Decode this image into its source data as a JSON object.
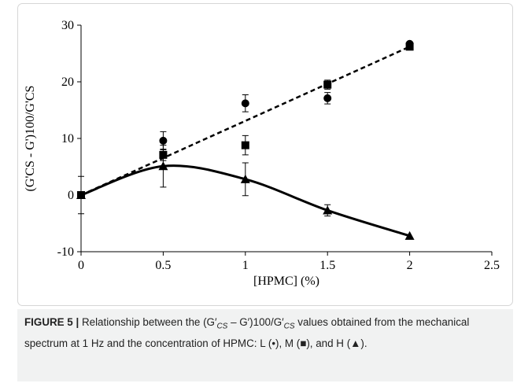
{
  "chart_data": {
    "type": "scatter",
    "x_label": "[HPMC] (%)",
    "y_label": "(G'CS - G')100/G'CS",
    "x": [
      0,
      0.5,
      1,
      1.5,
      2
    ],
    "series": [
      {
        "name": "L",
        "marker": "circle",
        "color": "#000000",
        "values": [
          0,
          9.6,
          16.2,
          17.1,
          26.7
        ],
        "errors": [
          3.3,
          1.6,
          1.5,
          1.0,
          0
        ]
      },
      {
        "name": "M",
        "marker": "square",
        "color": "#000000",
        "values": [
          0,
          7.1,
          8.8,
          19.5,
          26.2
        ],
        "errors": [
          0,
          1.0,
          1.7,
          0.8,
          0
        ]
      },
      {
        "name": "H",
        "marker": "triangle",
        "color": "#000000",
        "values": [
          0,
          5.1,
          2.8,
          -2.7,
          -7.2
        ],
        "errors": [
          0,
          3.7,
          2.9,
          1.0,
          0
        ],
        "curve": "smooth"
      }
    ],
    "trend_line": {
      "x": [
        0,
        2
      ],
      "values": [
        0,
        26.2
      ],
      "style": "dashed"
    },
    "xlim": [
      0,
      2.5
    ],
    "xticks": [
      0,
      0.5,
      1,
      1.5,
      2,
      2.5
    ],
    "ylim": [
      -10,
      30
    ],
    "yticks": [
      -10,
      0,
      10,
      20,
      30
    ],
    "grid": false
  },
  "caption": {
    "label": "FIGURE 5 |",
    "parts": [
      "Relationship between the (G′",
      "CS",
      " – G′)100/G′",
      "CS",
      " values obtained from the mechanical spectrum at 1 Hz and the concentration of HPMC: L (•), M (■), and H (▲)."
    ]
  }
}
